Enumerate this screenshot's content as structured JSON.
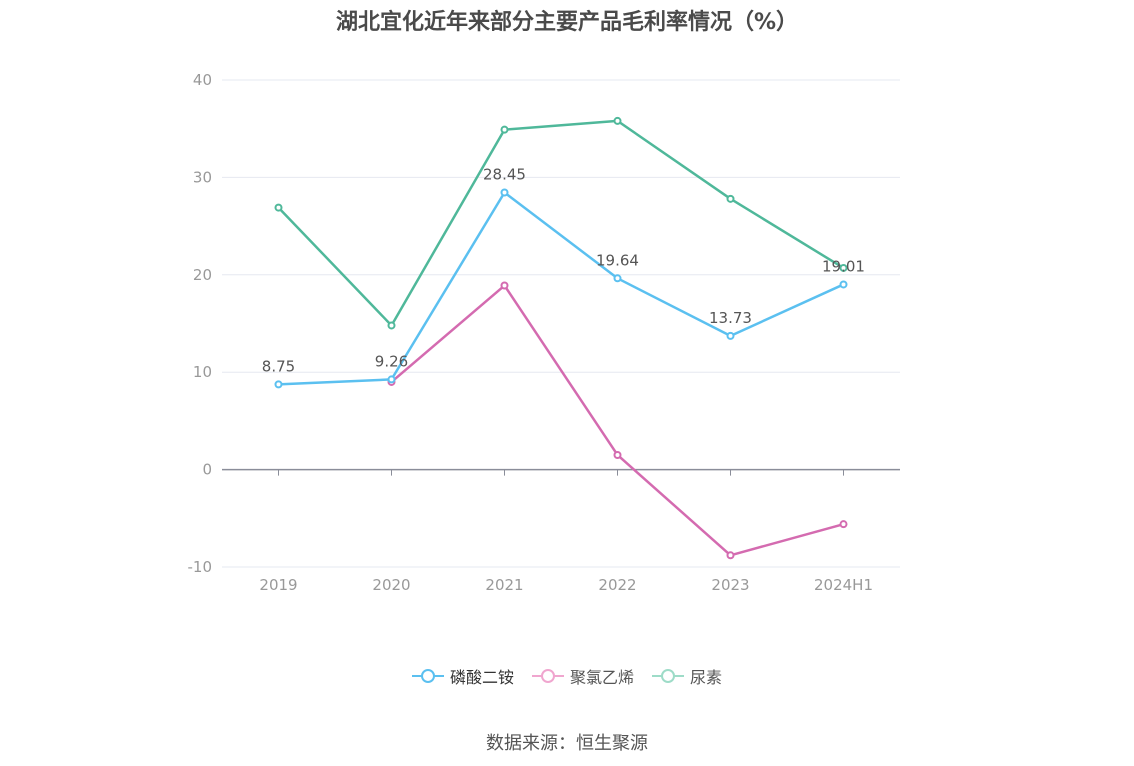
{
  "chart_data": {
    "type": "line",
    "title": "湖北宜化近年来部分主要产品毛利率情况（%）",
    "categories": [
      "2019",
      "2020",
      "2021",
      "2022",
      "2023",
      "2024H1"
    ],
    "ylim": [
      -10,
      40
    ],
    "yticks": [
      -10,
      0,
      10,
      20,
      30,
      40
    ],
    "grid": true,
    "legend_position": "bottom",
    "series": [
      {
        "name": "磷酸二铵",
        "color": "#5bc0f0",
        "values": [
          8.75,
          9.26,
          28.45,
          19.64,
          13.73,
          19.01
        ],
        "labels": [
          "8.75",
          "9.26",
          "28.45",
          "19.64",
          "13.73",
          "19.01"
        ]
      },
      {
        "name": "聚氯乙烯",
        "color": "#d46bb0",
        "values": [
          null,
          9.0,
          18.9,
          1.5,
          -8.8,
          -5.6
        ]
      },
      {
        "name": "尿素",
        "color": "#4fb89a",
        "values": [
          26.9,
          14.8,
          34.9,
          35.8,
          27.8,
          20.7
        ]
      }
    ],
    "legend_swatch_colors": [
      "#5bc0f0",
      "#f0a6cf",
      "#9edcc8"
    ]
  },
  "source": "数据来源：恒生聚源"
}
